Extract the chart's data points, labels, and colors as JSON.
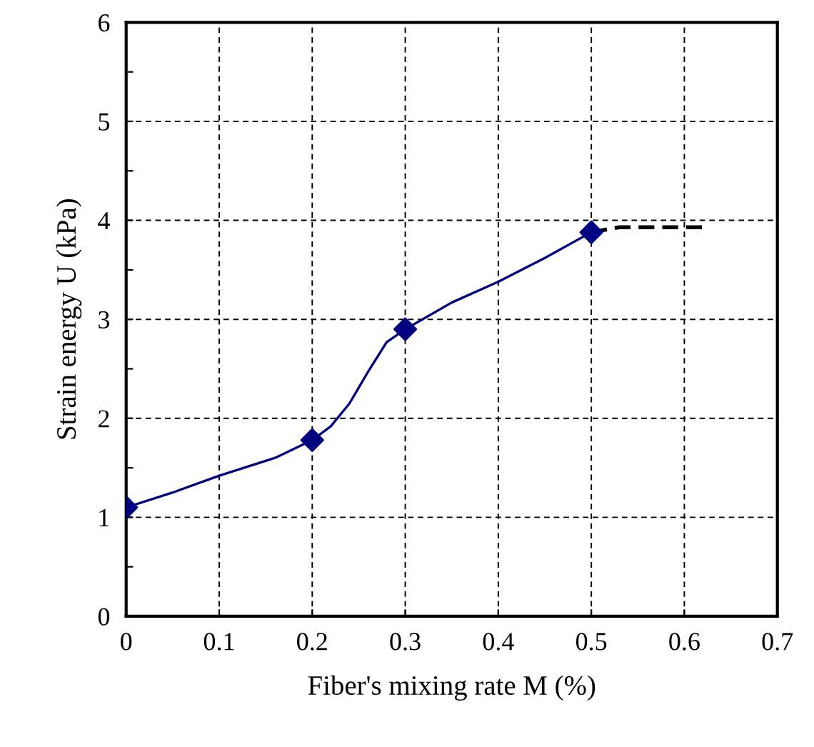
{
  "chart_data": {
    "type": "line",
    "xlabel": "Fiber's mixing rate M (%)",
    "ylabel": "Strain energy U (kPa)",
    "xlim": [
      0,
      0.7
    ],
    "xticks": [
      0,
      0.1,
      0.2,
      0.3,
      0.4,
      0.5,
      0.6,
      0.7
    ],
    "ylim": [
      0,
      6
    ],
    "yticks": [
      0,
      {
        "value": 0.5,
        "label": null
      },
      1,
      {
        "value": 1.5,
        "label": null
      },
      2,
      {
        "value": 2.5,
        "label": null
      },
      3,
      {
        "value": 3.5,
        "label": null
      },
      4,
      {
        "value": 4.5,
        "label": null
      },
      5,
      {
        "value": 5.5,
        "label": null
      },
      6
    ],
    "grid": true,
    "series": [
      {
        "color": "#000080",
        "line_style": "solid",
        "marker": "none",
        "x": [
          0,
          0.05,
          0.1,
          0.16,
          0.2,
          0.22,
          0.24,
          0.26,
          0.28,
          0.3,
          0.35,
          0.4,
          0.45,
          0.5
        ],
        "values": [
          1.1,
          1.25,
          1.42,
          1.6,
          1.78,
          1.92,
          2.15,
          2.47,
          2.77,
          2.9,
          3.17,
          3.38,
          3.62,
          3.88
        ]
      },
      {
        "type": "scatter",
        "color": "#000080",
        "marker": "diamond",
        "x": [
          0,
          0.2,
          0.3,
          0.5
        ],
        "values": [
          1.1,
          1.78,
          2.9,
          3.88
        ]
      },
      {
        "type": "line",
        "color": "#000000",
        "line_style": "dashed",
        "marker": "none",
        "x": [
          0.5,
          0.53,
          0.56,
          0.62
        ],
        "values": [
          3.88,
          3.93,
          3.93,
          3.93
        ]
      }
    ]
  }
}
